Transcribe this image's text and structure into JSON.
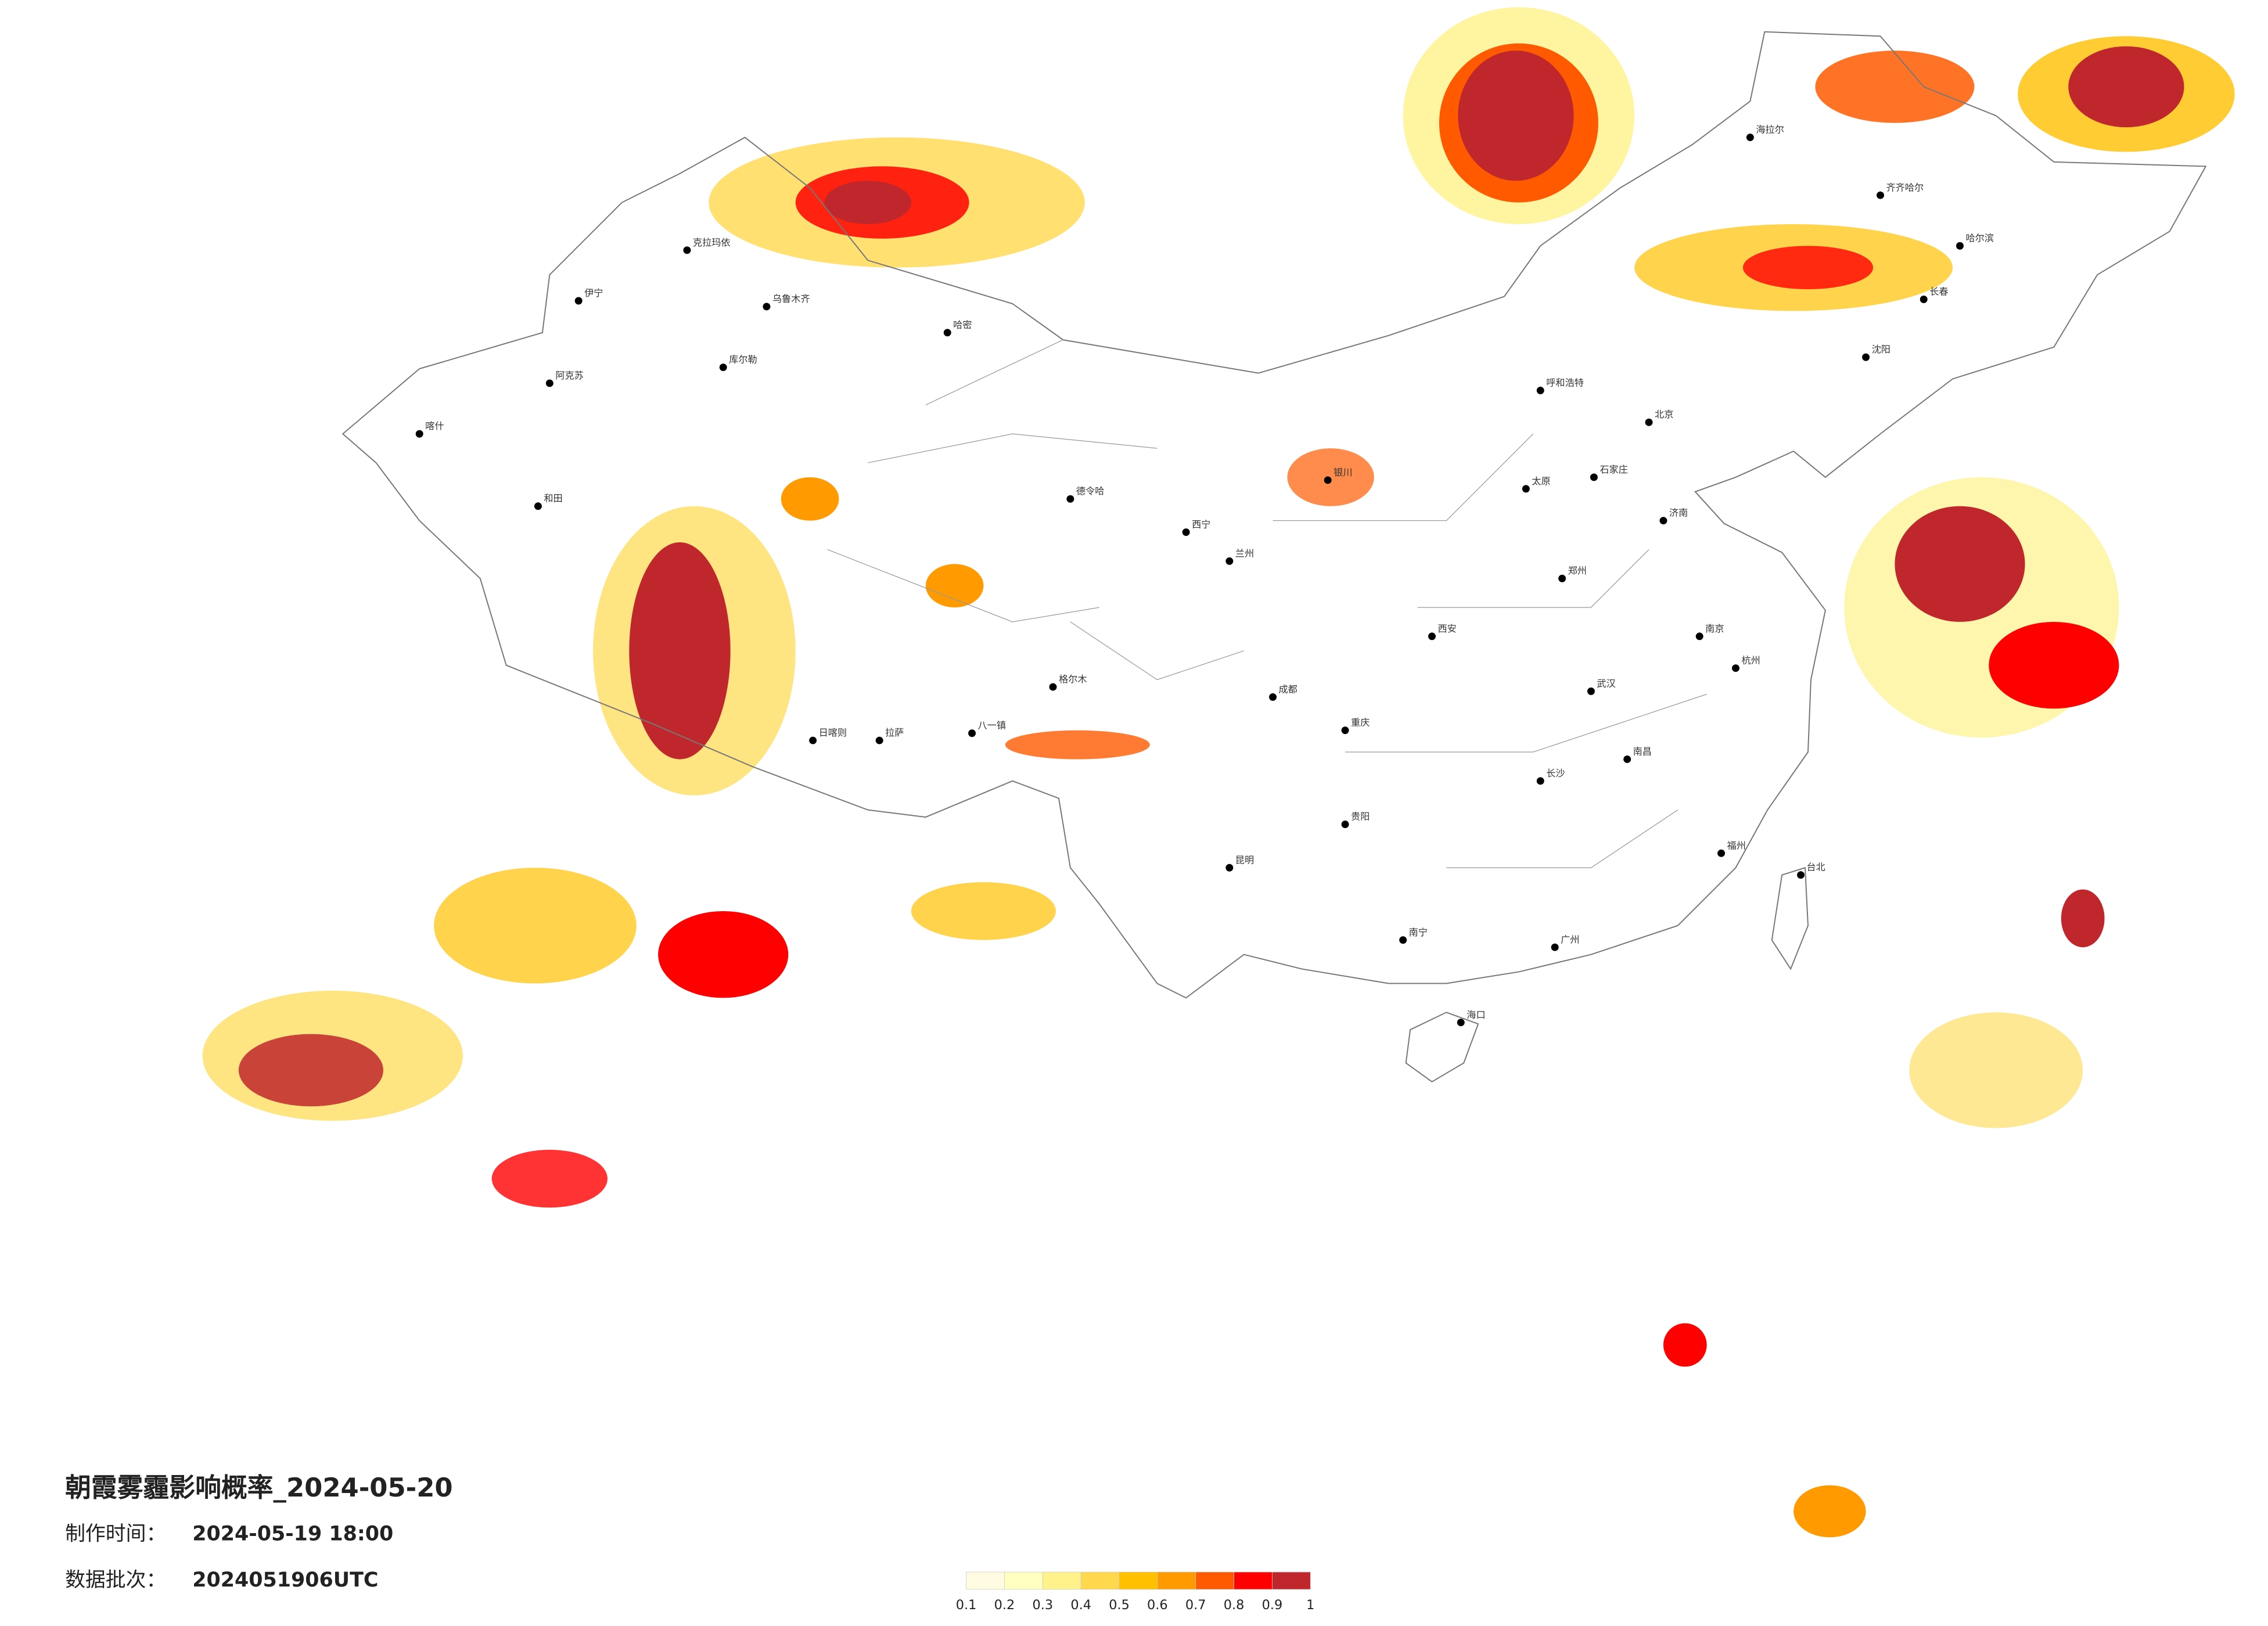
{
  "title": "朝霞雾霾影响概率_2024-05-20",
  "made_label": "制作时间：",
  "made_time": "2024-05-19 18:00",
  "batch_label": "数据批次：",
  "batch": "2024051906UTC",
  "legend": {
    "ticks": [
      0.1,
      0.2,
      0.3,
      0.4,
      0.5,
      0.6,
      0.7,
      0.8,
      0.9,
      1
    ],
    "colors": [
      "#fffbe0",
      "#ffffbf",
      "#fff28a",
      "#ffd84d",
      "#ffc000",
      "#ff9a00",
      "#ff5a00",
      "#ff0000",
      "#c0272d"
    ]
  },
  "cities": [
    "乌鲁木齐",
    "克拉玛依",
    "伊宁",
    "库尔勒",
    "阿克苏",
    "和田",
    "喀什",
    "哈密",
    "日喀则",
    "拉萨",
    "八一镇",
    "格尔木",
    "德令哈",
    "西宁",
    "兰州",
    "银川",
    "呼和浩特",
    "北京",
    "石家庄",
    "太原",
    "济南",
    "郑州",
    "西安",
    "武汉",
    "长沙",
    "南昌",
    "杭州",
    "福州",
    "广州",
    "南宁",
    "贵阳",
    "昆明",
    "成都",
    "重庆",
    "哈尔滨",
    "长春",
    "沈阳",
    "海拉尔",
    "齐齐哈尔",
    "海口",
    "台北",
    "南京"
  ]
}
